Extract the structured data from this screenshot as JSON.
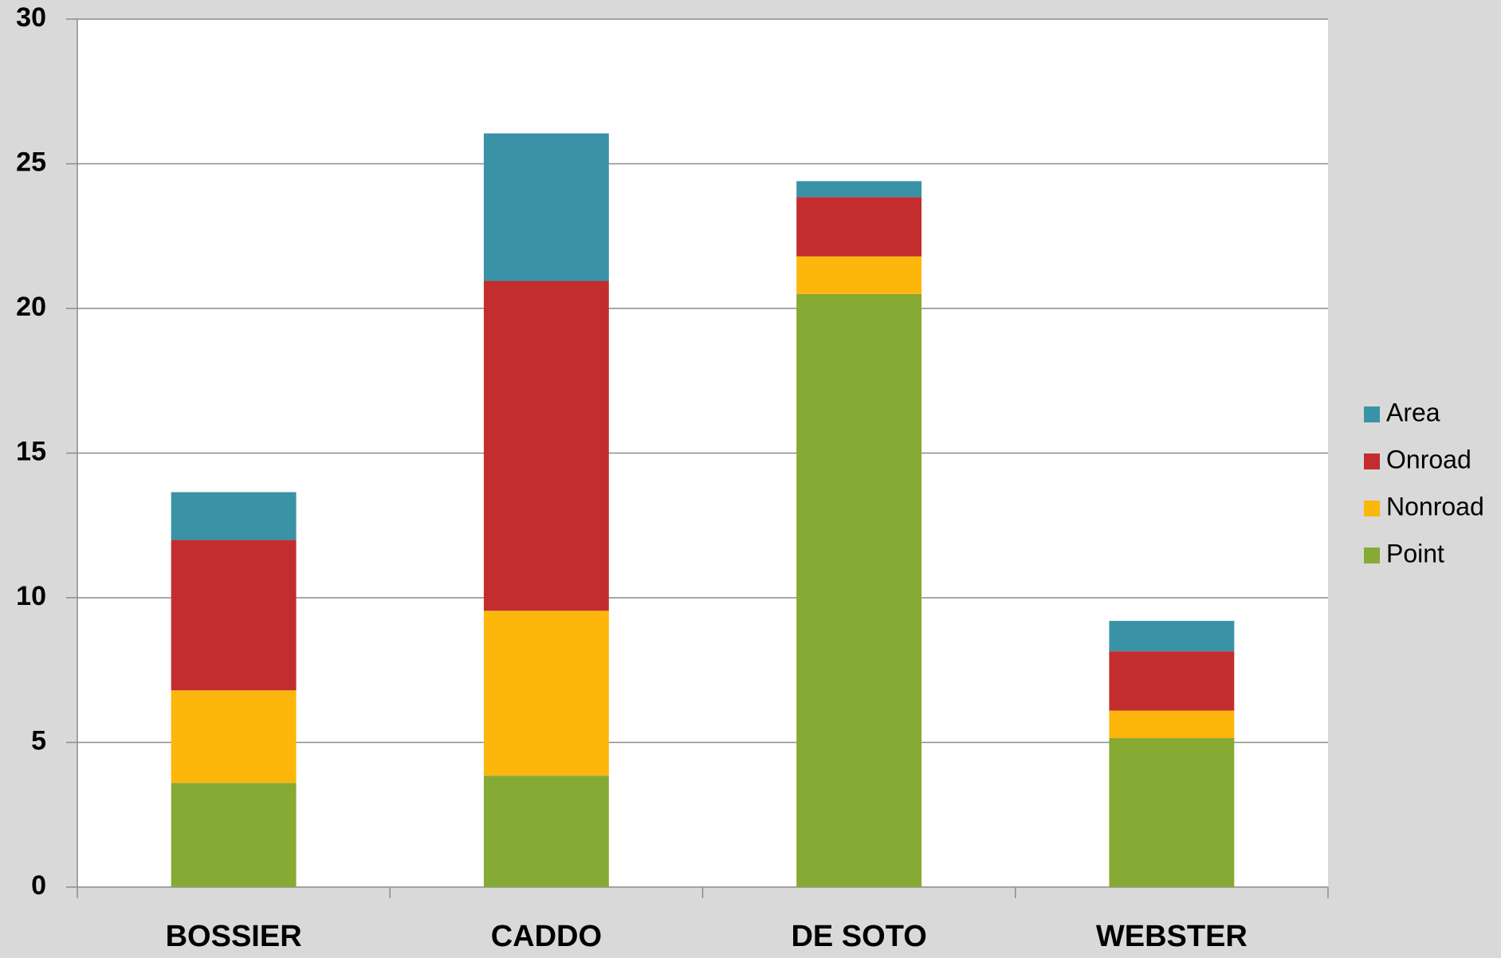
{
  "chart_data": {
    "type": "stacked_bar",
    "categories": [
      "BOSSIER",
      "CADDO",
      "DE SOTO",
      "WEBSTER"
    ],
    "series": [
      {
        "name": "Point",
        "color": "#86aa34",
        "values": [
          3.6,
          3.85,
          20.5,
          5.15
        ]
      },
      {
        "name": "Nonroad",
        "color": "#fdb60c",
        "values": [
          3.2,
          5.7,
          1.3,
          0.95
        ]
      },
      {
        "name": "Onroad",
        "color": "#c32d2e",
        "values": [
          5.2,
          11.4,
          2.05,
          2.05
        ]
      },
      {
        "name": "Area",
        "color": "#3a92a7",
        "values": [
          1.65,
          5.1,
          0.55,
          1.05
        ]
      }
    ],
    "ylim": [
      0,
      30
    ],
    "yticks": [
      0,
      5,
      10,
      15,
      20,
      25,
      30
    ],
    "grid": true,
    "legend": "right"
  }
}
